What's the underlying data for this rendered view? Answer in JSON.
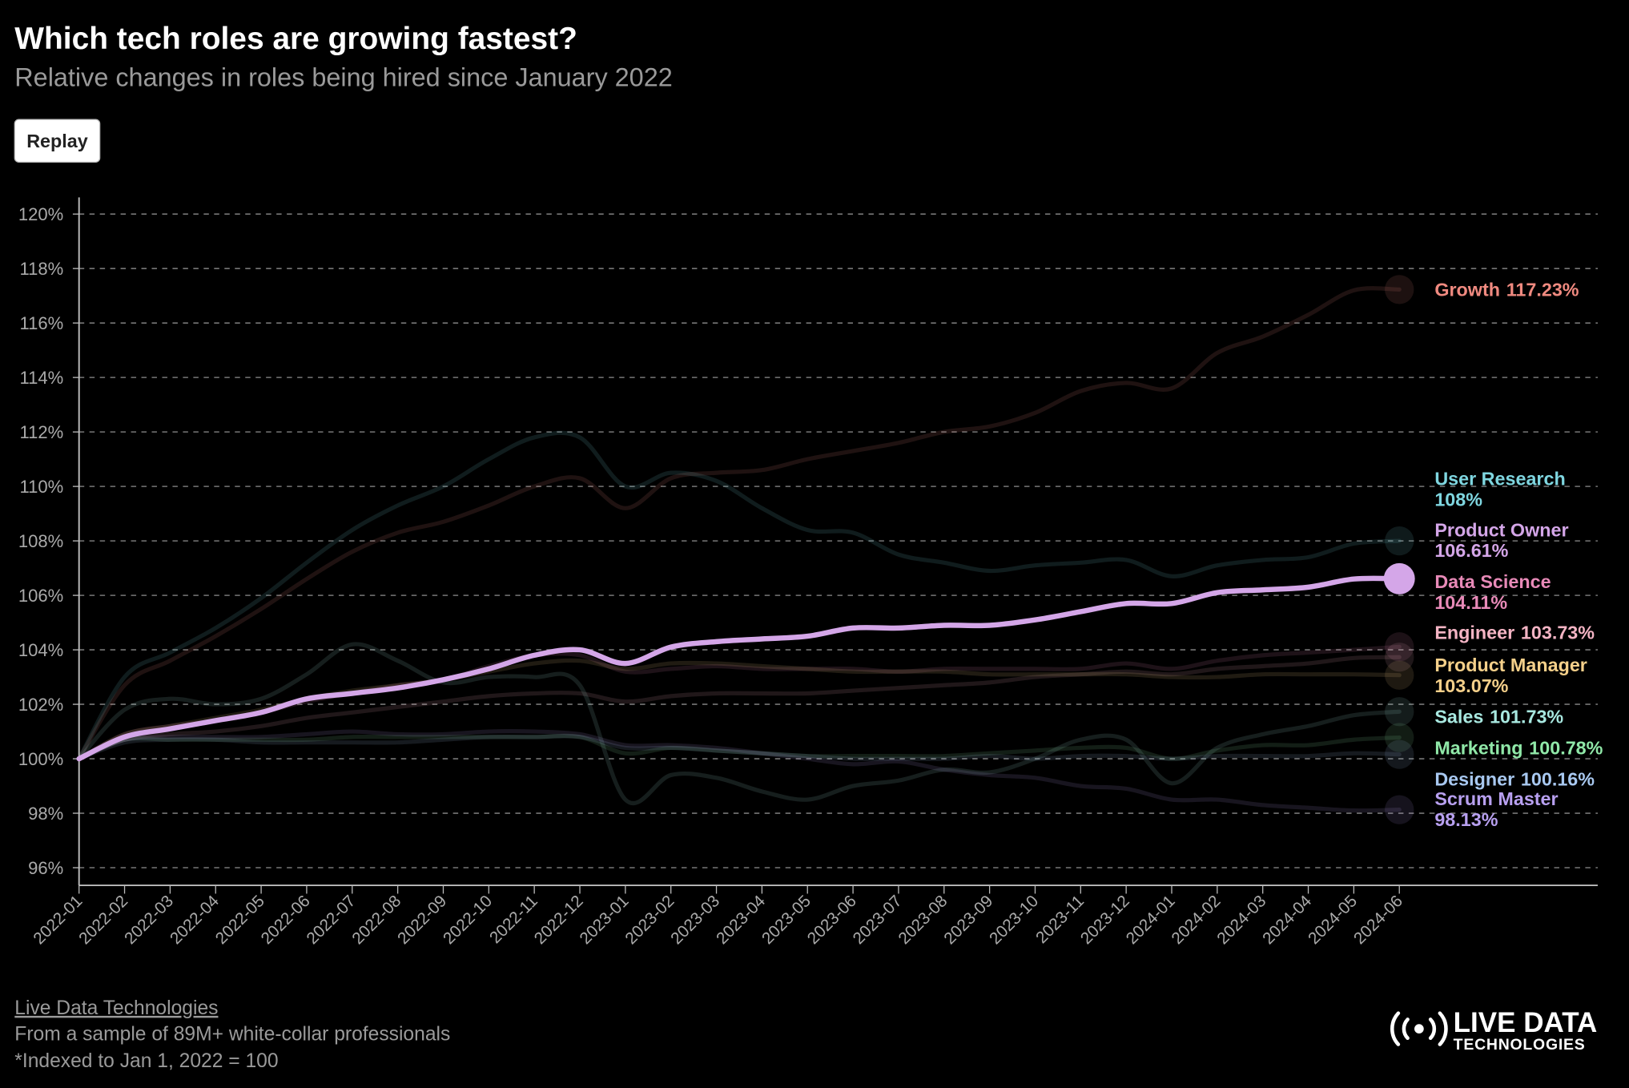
{
  "chart_data": {
    "type": "line",
    "title": "Which tech roles are growing fastest?",
    "subtitle": "Relative changes in roles being hired since January 2022",
    "categories": [
      "2022-01",
      "2022-02",
      "2022-03",
      "2022-04",
      "2022-05",
      "2022-06",
      "2022-07",
      "2022-08",
      "2022-09",
      "2022-10",
      "2022-11",
      "2022-12",
      "2023-01",
      "2023-02",
      "2023-03",
      "2023-04",
      "2023-05",
      "2023-06",
      "2023-07",
      "2023-08",
      "2023-09",
      "2023-10",
      "2023-11",
      "2023-12",
      "2024-01",
      "2024-02",
      "2024-03",
      "2024-04",
      "2024-05",
      "2024-06"
    ],
    "ylim": [
      96,
      120
    ],
    "yticks": [
      {
        "value": 96,
        "label": "96%"
      },
      {
        "value": 98,
        "label": "98%"
      },
      {
        "value": 100,
        "label": "100%"
      },
      {
        "value": 102,
        "label": "102%"
      },
      {
        "value": 104,
        "label": "104%"
      },
      {
        "value": 106,
        "label": "106%"
      },
      {
        "value": 108,
        "label": "108%"
      },
      {
        "value": 110,
        "label": "110%"
      },
      {
        "value": 112,
        "label": "112%"
      },
      {
        "value": 114,
        "label": "114%"
      },
      {
        "value": 116,
        "label": "116%"
      },
      {
        "value": 118,
        "label": "118%"
      },
      {
        "value": 120,
        "label": "120%"
      }
    ],
    "grid": true,
    "series": [
      {
        "name": "Growth",
        "color": "#f08a80",
        "values": [
          100,
          102.7,
          103.6,
          104.5,
          105.5,
          106.6,
          107.6,
          108.3,
          108.7,
          109.3,
          110.0,
          110.3,
          109.2,
          110.3,
          110.5,
          110.6,
          111.0,
          111.3,
          111.6,
          112.0,
          112.2,
          112.7,
          113.5,
          113.8,
          113.6,
          114.9,
          115.5,
          116.3,
          117.2,
          117.23
        ],
        "value_labels": [
          null,
          null,
          null,
          null,
          null,
          null,
          null,
          null,
          null,
          null,
          null,
          null,
          null,
          null,
          null,
          null,
          null,
          null,
          null,
          null,
          null,
          null,
          null,
          null,
          null,
          null,
          null,
          null,
          null,
          "117.23%"
        ]
      },
      {
        "name": "User Research",
        "color": "#7fd6e0",
        "values": [
          100,
          103.0,
          103.9,
          104.8,
          105.9,
          107.2,
          108.4,
          109.3,
          110.0,
          111.0,
          111.8,
          111.8,
          110.0,
          110.5,
          110.2,
          109.2,
          108.4,
          108.3,
          107.5,
          107.2,
          106.9,
          107.1,
          107.2,
          107.3,
          106.7,
          107.1,
          107.3,
          107.4,
          107.9,
          108
        ],
        "value_labels": [
          null,
          null,
          null,
          null,
          null,
          null,
          null,
          null,
          null,
          null,
          null,
          null,
          null,
          null,
          null,
          null,
          null,
          null,
          null,
          null,
          null,
          null,
          null,
          null,
          null,
          null,
          null,
          null,
          null,
          "108%"
        ]
      },
      {
        "name": "Product Owner",
        "color": "#d4a6e8",
        "highlight": true,
        "values": [
          100,
          100.8,
          101.1,
          101.4,
          101.7,
          102.2,
          102.4,
          102.6,
          102.9,
          103.3,
          103.8,
          104.0,
          103.5,
          104.1,
          104.3,
          104.4,
          104.5,
          104.8,
          104.8,
          104.9,
          104.9,
          105.1,
          105.4,
          105.7,
          105.7,
          106.1,
          106.2,
          106.3,
          106.6,
          106.61
        ],
        "value_labels": [
          null,
          null,
          null,
          null,
          null,
          null,
          null,
          null,
          null,
          null,
          null,
          null,
          null,
          null,
          null,
          null,
          null,
          null,
          null,
          null,
          null,
          null,
          null,
          null,
          null,
          null,
          null,
          null,
          null,
          "106.61%"
        ]
      },
      {
        "name": "Data Science",
        "color": "#e88ab8",
        "values": [
          100,
          100.9,
          101.2,
          101.4,
          101.7,
          102.1,
          102.4,
          102.7,
          102.9,
          103.4,
          103.8,
          103.8,
          103.2,
          103.3,
          103.4,
          103.3,
          103.3,
          103.3,
          103.2,
          103.3,
          103.3,
          103.3,
          103.3,
          103.5,
          103.3,
          103.6,
          103.8,
          103.9,
          104.0,
          104.11
        ],
        "value_labels": [
          null,
          null,
          null,
          null,
          null,
          null,
          null,
          null,
          null,
          null,
          null,
          null,
          null,
          null,
          null,
          null,
          null,
          null,
          null,
          null,
          null,
          null,
          null,
          null,
          null,
          null,
          null,
          null,
          null,
          "104.11%"
        ]
      },
      {
        "name": "Engineer",
        "color": "#f4b4c4",
        "values": [
          100,
          100.7,
          100.9,
          101.0,
          101.2,
          101.5,
          101.7,
          101.9,
          102.1,
          102.3,
          102.4,
          102.4,
          102.1,
          102.3,
          102.4,
          102.4,
          102.4,
          102.5,
          102.6,
          102.7,
          102.8,
          103.0,
          103.1,
          103.2,
          103.1,
          103.3,
          103.4,
          103.5,
          103.7,
          103.73
        ],
        "value_labels": [
          null,
          null,
          null,
          null,
          null,
          null,
          null,
          null,
          null,
          null,
          null,
          null,
          null,
          null,
          null,
          null,
          null,
          null,
          null,
          null,
          null,
          null,
          null,
          null,
          null,
          null,
          null,
          null,
          null,
          "103.73%"
        ]
      },
      {
        "name": "Product Manager",
        "color": "#f5d08a",
        "values": [
          100,
          100.9,
          101.2,
          101.5,
          101.8,
          102.2,
          102.5,
          102.7,
          102.9,
          103.2,
          103.5,
          103.6,
          103.3,
          103.5,
          103.5,
          103.4,
          103.3,
          103.2,
          103.2,
          103.2,
          103.1,
          103.1,
          103.1,
          103.1,
          103.0,
          103.0,
          103.1,
          103.1,
          103.1,
          103.07
        ],
        "value_labels": [
          null,
          null,
          null,
          null,
          null,
          null,
          null,
          null,
          null,
          null,
          null,
          null,
          null,
          null,
          null,
          null,
          null,
          null,
          null,
          null,
          null,
          null,
          null,
          null,
          null,
          null,
          null,
          null,
          null,
          "103.07%"
        ]
      },
      {
        "name": "Sales",
        "color": "#a8e8e0",
        "values": [
          100,
          101.8,
          102.2,
          102.0,
          102.2,
          103.1,
          104.2,
          103.6,
          102.8,
          103.0,
          103.0,
          102.7,
          98.5,
          99.4,
          99.3,
          98.8,
          98.5,
          99.0,
          99.2,
          99.6,
          99.5,
          100.0,
          100.7,
          100.7,
          99.1,
          100.4,
          100.9,
          101.2,
          101.6,
          101.73
        ],
        "value_labels": [
          null,
          null,
          null,
          null,
          null,
          null,
          null,
          null,
          null,
          null,
          null,
          null,
          null,
          null,
          null,
          null,
          null,
          null,
          null,
          null,
          null,
          null,
          null,
          null,
          null,
          null,
          null,
          null,
          null,
          "101.73%"
        ]
      },
      {
        "name": "Marketing",
        "color": "#90e8a8",
        "values": [
          100,
          100.7,
          100.7,
          100.7,
          100.7,
          100.7,
          100.8,
          100.8,
          100.8,
          100.8,
          100.8,
          100.8,
          100.2,
          100.4,
          100.3,
          100.2,
          100.1,
          100.1,
          100.1,
          100.1,
          100.2,
          100.3,
          100.4,
          100.4,
          100.0,
          100.3,
          100.5,
          100.5,
          100.7,
          100.78
        ],
        "value_labels": [
          null,
          null,
          null,
          null,
          null,
          null,
          null,
          null,
          null,
          null,
          null,
          null,
          null,
          null,
          null,
          null,
          null,
          null,
          null,
          null,
          null,
          null,
          null,
          null,
          null,
          null,
          null,
          null,
          null,
          "100.78%"
        ]
      },
      {
        "name": "Designer",
        "color": "#a8c8f0",
        "values": [
          100,
          100.6,
          100.7,
          100.7,
          100.6,
          100.6,
          100.6,
          100.6,
          100.7,
          100.8,
          100.8,
          100.8,
          100.4,
          100.4,
          100.3,
          100.2,
          100.1,
          100.0,
          100.0,
          100.0,
          100.1,
          100.0,
          100.1,
          100.1,
          100.0,
          100.1,
          100.1,
          100.1,
          100.2,
          100.16
        ],
        "value_labels": [
          null,
          null,
          null,
          null,
          null,
          null,
          null,
          null,
          null,
          null,
          null,
          null,
          null,
          null,
          null,
          null,
          null,
          null,
          null,
          null,
          null,
          null,
          null,
          null,
          null,
          null,
          null,
          null,
          null,
          "100.16%"
        ]
      },
      {
        "name": "Scrum Master",
        "color": "#b8a0f0",
        "values": [
          100,
          100.7,
          100.8,
          100.8,
          100.8,
          100.9,
          101.0,
          100.9,
          100.9,
          101.0,
          101.0,
          100.9,
          100.5,
          100.5,
          100.4,
          100.2,
          100.0,
          99.8,
          99.9,
          99.6,
          99.4,
          99.3,
          99.0,
          98.9,
          98.5,
          98.5,
          98.3,
          98.2,
          98.1,
          98.13
        ],
        "value_labels": [
          null,
          null,
          null,
          null,
          null,
          null,
          null,
          null,
          null,
          null,
          null,
          null,
          null,
          null,
          null,
          null,
          null,
          null,
          null,
          null,
          null,
          null,
          null,
          null,
          null,
          null,
          null,
          null,
          null,
          "98.13%"
        ]
      }
    ]
  },
  "controls": {
    "replay": "Replay"
  },
  "footer": {
    "source": "Live Data Technologies",
    "note": "From a sample of 89M+ white-collar professionals",
    "index_note": "*Indexed to Jan 1, 2022 = 100",
    "logo_top": "LIVE DATA",
    "logo_bottom": "TECHNOLOGIES"
  }
}
